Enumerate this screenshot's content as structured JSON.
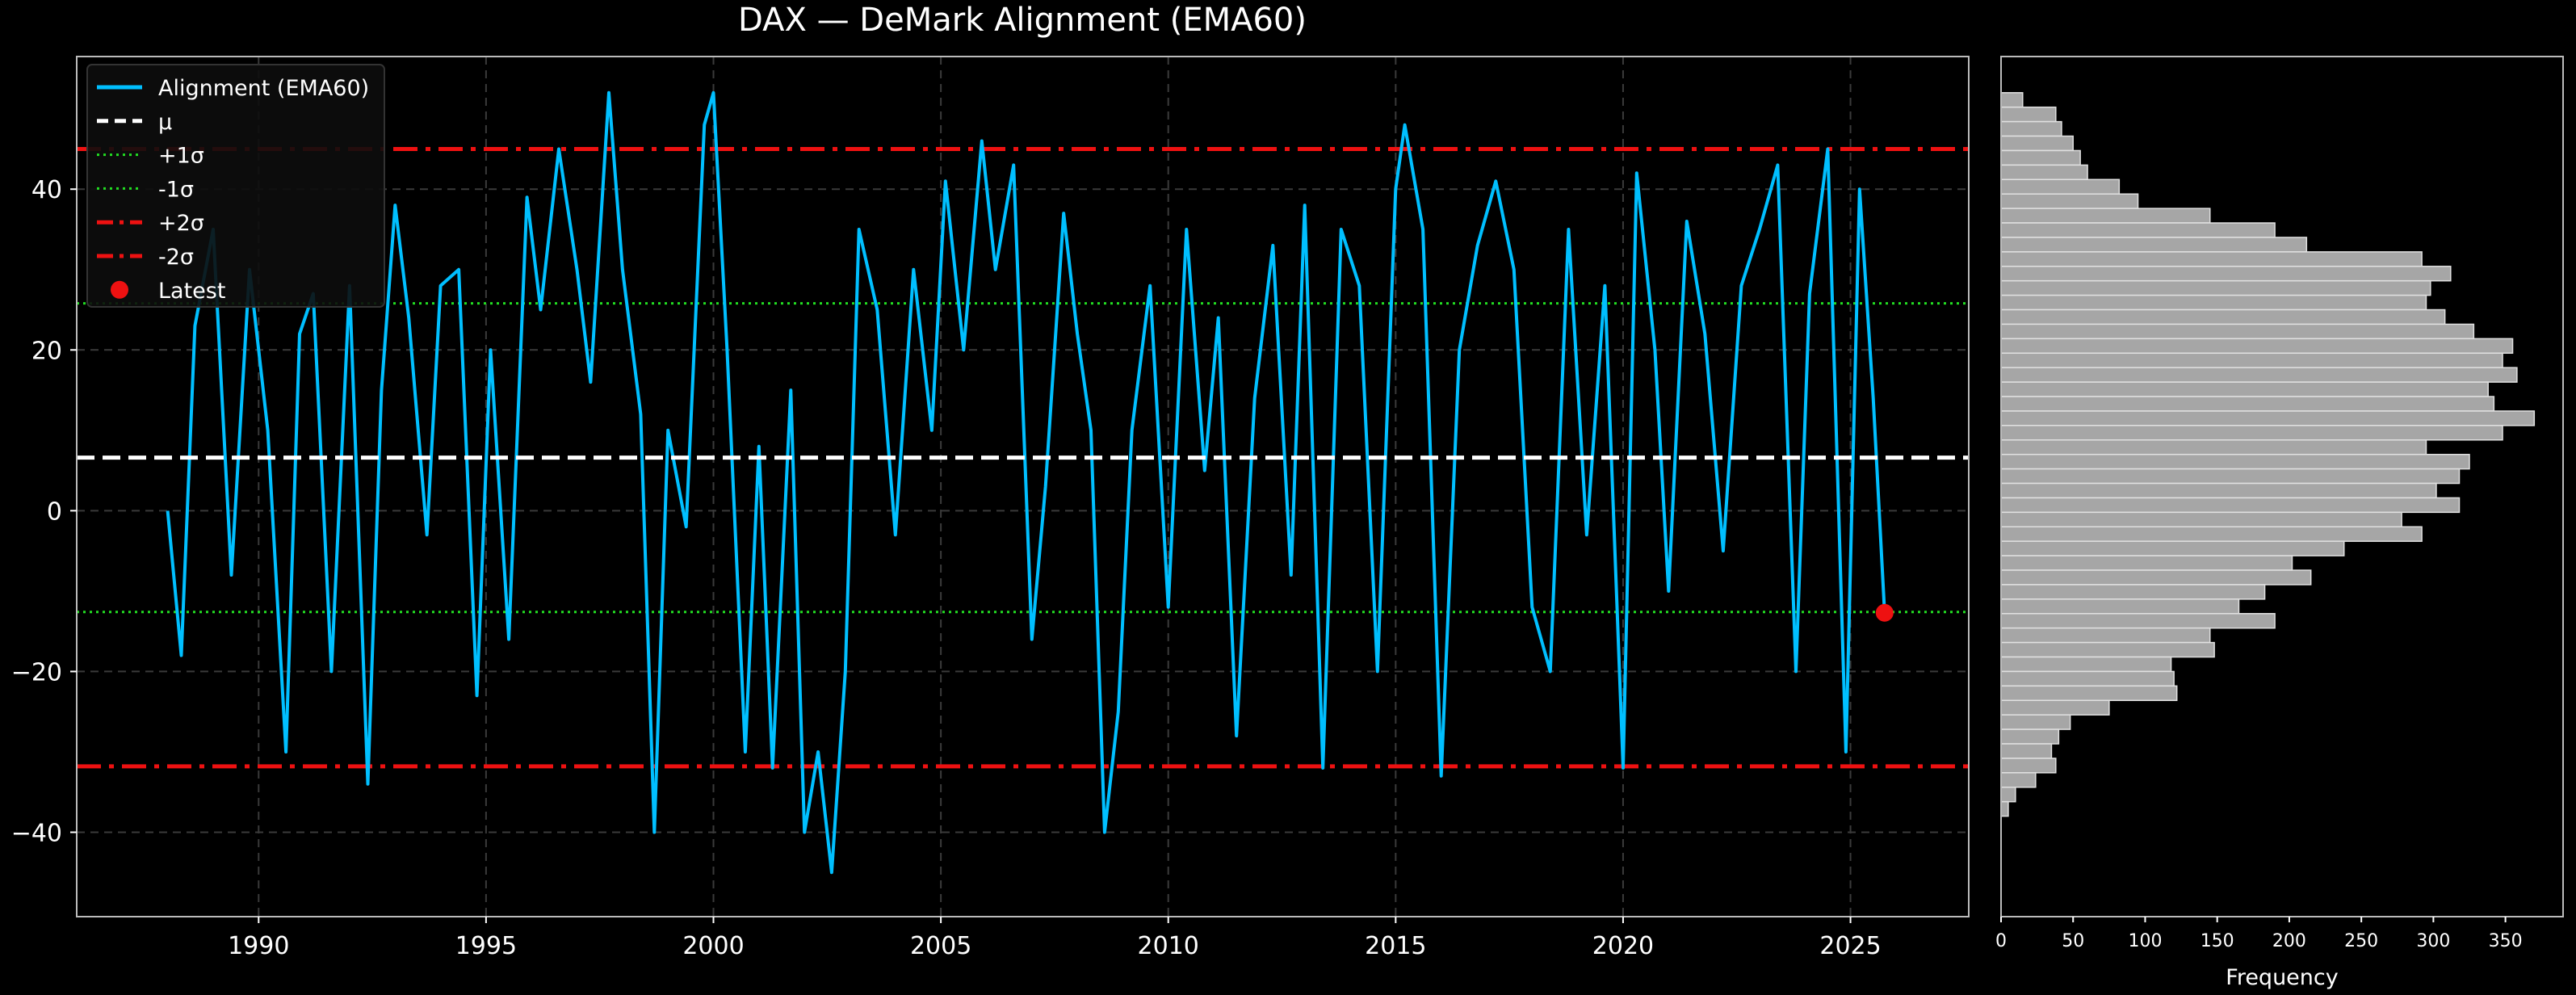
{
  "chart_data": [
    {
      "type": "line",
      "title": "DAX — DeMark Alignment (EMA60)",
      "xlabel": "",
      "ylabel": "",
      "xlim": [
        1986.0,
        2027.6
      ],
      "ylim": [
        -50.5,
        56.5
      ],
      "xticks": [
        1990,
        1995,
        2000,
        2005,
        2010,
        2015,
        2020,
        2025
      ],
      "xtick_labels": [
        "1990",
        "1995",
        "2000",
        "2005",
        "2010",
        "2015",
        "2020",
        "2025"
      ],
      "yticks": [
        -40,
        -20,
        0,
        20,
        40
      ],
      "ytick_labels": [
        "−40",
        "−20",
        "0",
        "20",
        "40"
      ],
      "grid": true,
      "legend_position": "top-left",
      "legend": [
        "Alignment (EMA60)",
        "μ",
        "+1σ",
        "-1σ",
        "+2σ",
        "-2σ",
        "Latest"
      ],
      "series": [
        {
          "name": "Alignment (EMA60)",
          "color": "#00bfff",
          "x": [
            1988.0,
            1988.3,
            1988.6,
            1989.0,
            1989.4,
            1989.8,
            1990.2,
            1990.6,
            1990.9,
            1991.2,
            1991.6,
            1992.0,
            1992.4,
            1992.7,
            1993.0,
            1993.3,
            1993.7,
            1994.0,
            1994.4,
            1994.8,
            1995.1,
            1995.5,
            1995.9,
            1996.2,
            1996.6,
            1997.0,
            1997.3,
            1997.7,
            1998.0,
            1998.4,
            1998.7,
            1999.0,
            1999.4,
            1999.8,
            2000.0,
            2000.3,
            2000.7,
            2001.0,
            2001.3,
            2001.7,
            2002.0,
            2002.3,
            2002.6,
            2002.9,
            2003.2,
            2003.6,
            2004.0,
            2004.4,
            2004.8,
            2005.1,
            2005.5,
            2005.9,
            2006.2,
            2006.6,
            2007.0,
            2007.3,
            2007.7,
            2008.0,
            2008.3,
            2008.6,
            2008.9,
            2009.2,
            2009.6,
            2010.0,
            2010.4,
            2010.8,
            2011.1,
            2011.5,
            2011.9,
            2012.3,
            2012.7,
            2013.0,
            2013.4,
            2013.8,
            2014.2,
            2014.6,
            2015.0,
            2015.2,
            2015.6,
            2016.0,
            2016.4,
            2016.8,
            2017.2,
            2017.6,
            2018.0,
            2018.4,
            2018.8,
            2019.2,
            2019.6,
            2020.0,
            2020.3,
            2020.7,
            2021.0,
            2021.4,
            2021.8,
            2022.2,
            2022.6,
            2023.0,
            2023.4,
            2023.8,
            2024.1,
            2024.5,
            2024.9,
            2025.2,
            2025.5,
            2025.75
          ],
          "y": [
            0,
            -18,
            23,
            35,
            -8,
            30,
            10,
            -30,
            22,
            27,
            -20,
            28,
            -34,
            15,
            38,
            24,
            -3,
            28,
            30,
            -23,
            20,
            -16,
            39,
            25,
            45,
            30,
            16,
            52,
            30,
            12,
            -40,
            10,
            -2,
            48,
            52,
            20,
            -30,
            8,
            -32,
            15,
            -40,
            -30,
            -45,
            -20,
            35,
            25,
            -3,
            30,
            10,
            41,
            20,
            46,
            30,
            43,
            -16,
            3,
            37,
            22,
            10,
            -40,
            -25,
            10,
            28,
            -12,
            35,
            5,
            24,
            -28,
            14,
            33,
            -8,
            38,
            -32,
            35,
            28,
            -20,
            40,
            48,
            35,
            -33,
            20,
            33,
            41,
            30,
            -12,
            -20,
            35,
            -3,
            28,
            -32,
            42,
            20,
            -10,
            36,
            22,
            -5,
            28,
            35,
            43,
            -20,
            27,
            45,
            -30,
            40,
            14,
            -12.7
          ]
        }
      ],
      "reference_lines": {
        "mean": 6.6,
        "plus_1_sigma": 25.8,
        "minus_1_sigma": -12.6,
        "plus_2_sigma": 45.0,
        "minus_2_sigma": -31.8
      },
      "latest": {
        "x": 2025.75,
        "y": -12.7
      }
    },
    {
      "type": "bar",
      "orientation": "horizontal",
      "xlabel": "Frequency",
      "xlim": [
        0,
        390
      ],
      "xticks": [
        0,
        50,
        100,
        150,
        200,
        250,
        300,
        350
      ],
      "xtick_labels": [
        "0",
        "50",
        "100",
        "150",
        "200",
        "250",
        "300",
        "350"
      ],
      "bin_start": 52.0,
      "bin_width": 1.8,
      "bins_count_note": "bins ordered top (high alignment) to bottom",
      "values": [
        15,
        38,
        42,
        50,
        55,
        60,
        82,
        95,
        145,
        190,
        212,
        292,
        312,
        298,
        295,
        308,
        328,
        355,
        348,
        358,
        338,
        342,
        370,
        348,
        295,
        325,
        318,
        302,
        318,
        278,
        292,
        238,
        202,
        215,
        183,
        165,
        190,
        145,
        148,
        118,
        120,
        122,
        75,
        48,
        40,
        35,
        38,
        24,
        10,
        5
      ]
    }
  ]
}
